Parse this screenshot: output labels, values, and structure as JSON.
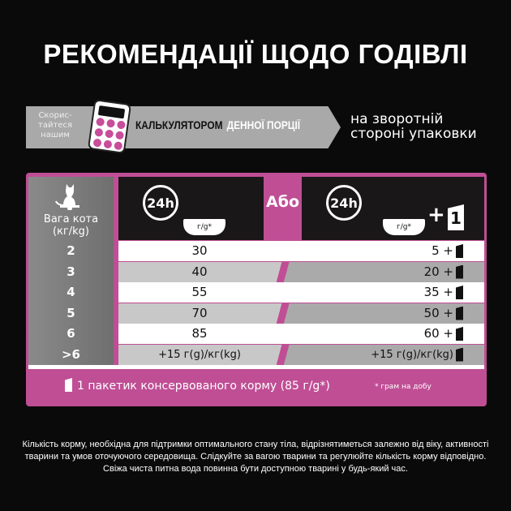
{
  "title": "РЕКОМЕНДАЦІЇ ЩОДО ГОДІВЛІ",
  "banner": {
    "use_text": "Скорис-тайтеся нашим",
    "calc_bold": "КАЛЬКУЛЯТОРОМ",
    "calc_rest": "ДЕННОЇ ПОРЦІЇ",
    "back_text": "на зворотній стороні упаковки"
  },
  "table": {
    "weight_header": "Вага кота (кг/kg)",
    "or_label": "Або",
    "clock_label": "24h",
    "bowl_label": "г/g*",
    "plus": "+",
    "one": "1",
    "rows": [
      {
        "w": "2",
        "dry": "30",
        "mixed": "5 +"
      },
      {
        "w": "3",
        "dry": "40",
        "mixed": "20 +"
      },
      {
        "w": "4",
        "dry": "55",
        "mixed": "35 +"
      },
      {
        "w": "5",
        "dry": "70",
        "mixed": "50 +"
      },
      {
        "w": "6",
        "dry": "85",
        "mixed": "60 +"
      },
      {
        "w": ">6",
        "dry": "+15 г(g)/кг(kg)",
        "mixed": "+15 г(g)/кг(kg)"
      }
    ]
  },
  "footer": {
    "pouch": "1 пакетик консервованого корму (85 г/g*)",
    "note": "* грам на добу"
  },
  "bottom_text": "Кількість корму, необхідна для підтримки оптимального стану тіла, відрізнятиметься залежно від віку, активності тварини та умов оточуючого середовища. Слідкуйте за вагою тварини та регулюйте кількість корму відповідно. Свіжа чиста питна вода повинна бути доступною тварині у будь-який час.",
  "colors": {
    "accent": "#c04e95",
    "background": "#0a0a0a"
  }
}
